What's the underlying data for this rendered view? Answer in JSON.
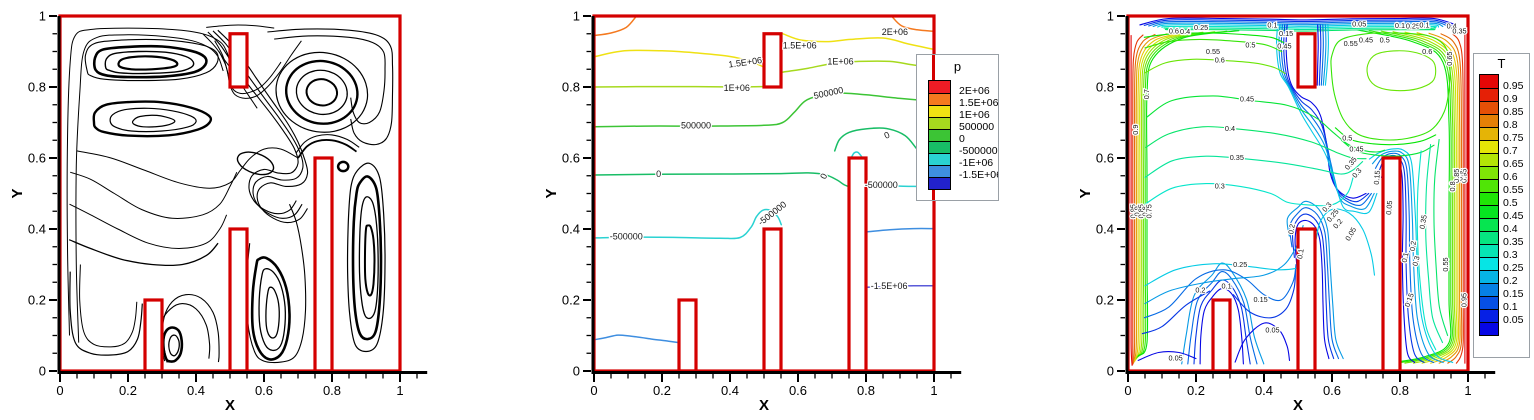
{
  "figure": {
    "background": "#ffffff",
    "boundary_color": "#d40000",
    "domain": {
      "x_range": [
        0,
        1
      ],
      "y_range": [
        0,
        1
      ],
      "obstacles": [
        {
          "x": 0.25,
          "y": 0.0,
          "w": 0.05,
          "h": 0.2
        },
        {
          "x": 0.5,
          "y": 0.0,
          "w": 0.05,
          "h": 0.4
        },
        {
          "x": 0.75,
          "y": 0.0,
          "w": 0.05,
          "h": 0.6
        },
        {
          "x": 0.5,
          "y": 0.8,
          "w": 0.05,
          "h": 0.15
        }
      ]
    },
    "axes": {
      "xlabel": "X",
      "ylabel": "Y",
      "x_ticks": [
        "0",
        "0.2",
        "0.4",
        "0.6",
        "0.8",
        "1"
      ],
      "y_ticks": [
        "0",
        "0.2",
        "0.4",
        "0.6",
        "0.8",
        "1"
      ],
      "tick_values": [
        0,
        0.2,
        0.4,
        0.6,
        0.8,
        1
      ]
    }
  },
  "chart_data": [
    {
      "type": "contour",
      "id": "streamlines",
      "title": "",
      "xlabel": "X",
      "ylabel": "Y",
      "xlim": [
        0,
        1.08
      ],
      "ylim": [
        0,
        1
      ],
      "line_color": "#000000",
      "description": "black streamline (stream-function) contours in a cavity with four red rectangular obstacles",
      "vortex_centers": [
        {
          "x": 0.26,
          "y": 0.87
        },
        {
          "x": 0.28,
          "y": 0.7
        },
        {
          "x": 0.77,
          "y": 0.785
        },
        {
          "x": 0.905,
          "y": 0.33
        },
        {
          "x": 0.62,
          "y": 0.16
        },
        {
          "x": 0.335,
          "y": 0.075
        },
        {
          "x": 0.833,
          "y": 0.576
        },
        {
          "x": 0.575,
          "y": 0.585
        }
      ],
      "contour_labels": []
    },
    {
      "type": "contour",
      "id": "pressure",
      "title": "",
      "xlabel": "X",
      "ylabel": "Y",
      "legend_title": "p",
      "legend_position": "right",
      "levels": [
        {
          "value": 2000000,
          "label": "2E+06",
          "color": "#f4791f"
        },
        {
          "value": 1500000,
          "label": "1.5E+06",
          "color": "#efe113"
        },
        {
          "value": 1000000,
          "label": "1E+06",
          "color": "#a6d91e"
        },
        {
          "value": 500000,
          "label": "500000",
          "color": "#3cc435"
        },
        {
          "value": 0,
          "label": "0",
          "color": "#18bd66"
        },
        {
          "value": -500000,
          "label": "-500000",
          "color": "#2ad2d2"
        },
        {
          "value": -1000000,
          "label": "-1E+06",
          "color": "#3e8ee0"
        },
        {
          "value": -1500000,
          "label": "-1.5E+06",
          "color": "#5a5ad9"
        }
      ],
      "legend_labels": [
        "2E+06",
        "1.5E+06",
        "1E+06",
        "500000",
        "0",
        "-500000",
        "-1E+06",
        "-1.5E+06"
      ],
      "legend_segment_colors": [
        "#ee1c25",
        "#f4791f",
        "#efe113",
        "#a6d91e",
        "#3cc435",
        "#18bd66",
        "#2ad2d2",
        "#3e8ee0",
        "#2222cc"
      ],
      "contour_labels": [
        {
          "text": "2E+06",
          "x": 0.885,
          "y": 0.953,
          "rot": 0
        },
        {
          "text": "1.5E+06",
          "x": 0.445,
          "y": 0.868,
          "rot": -8
        },
        {
          "text": "1.5E+06",
          "x": 0.605,
          "y": 0.916,
          "rot": 0
        },
        {
          "text": "1E+06",
          "x": 0.42,
          "y": 0.796,
          "rot": 0
        },
        {
          "text": "1E+06",
          "x": 0.725,
          "y": 0.871,
          "rot": 0
        },
        {
          "text": "500000",
          "x": 0.3,
          "y": 0.69,
          "rot": 0
        },
        {
          "text": "500000",
          "x": 0.69,
          "y": 0.782,
          "rot": -12
        },
        {
          "text": "0",
          "x": 0.19,
          "y": 0.554,
          "rot": 0
        },
        {
          "text": "0",
          "x": 0.677,
          "y": 0.548,
          "rot": -65
        },
        {
          "text": "0",
          "x": 0.862,
          "y": 0.663,
          "rot": -25
        },
        {
          "text": "-500000",
          "x": 0.095,
          "y": 0.377,
          "rot": 0
        },
        {
          "text": "-500000",
          "x": 0.525,
          "y": 0.443,
          "rot": -38
        },
        {
          "text": "-500000",
          "x": 0.845,
          "y": 0.523,
          "rot": 0
        },
        {
          "text": "-1.5E+06",
          "x": 0.868,
          "y": 0.238,
          "rot": 0
        }
      ]
    },
    {
      "type": "contour",
      "id": "temperature",
      "title": "",
      "xlabel": "X",
      "ylabel": "Y",
      "legend_title": "T",
      "legend_position": "right",
      "levels": [
        0.05,
        0.1,
        0.15,
        0.2,
        0.25,
        0.3,
        0.35,
        0.4,
        0.45,
        0.5,
        0.55,
        0.6,
        0.65,
        0.7,
        0.75,
        0.8,
        0.85,
        0.9,
        0.95
      ],
      "legend_labels": [
        "0.95",
        "0.9",
        "0.85",
        "0.8",
        "0.75",
        "0.7",
        "0.65",
        "0.6",
        "0.55",
        "0.5",
        "0.45",
        "0.4",
        "0.35",
        "0.3",
        "0.25",
        "0.2",
        "0.15",
        "0.1",
        "0.05"
      ],
      "colormap": "rainbow blue(0.05) to red(0.95)",
      "contour_labels": [
        {
          "text": "0.6",
          "x": 0.135,
          "y": 0.958,
          "rot": 0
        },
        {
          "text": "0.4",
          "x": 0.168,
          "y": 0.956,
          "rot": 0
        },
        {
          "text": "0.25",
          "x": 0.215,
          "y": 0.968,
          "rot": 0
        },
        {
          "text": "0.1",
          "x": 0.425,
          "y": 0.974,
          "rot": 0
        },
        {
          "text": "0.15",
          "x": 0.465,
          "y": 0.951,
          "rot": 0
        },
        {
          "text": "0.05",
          "x": 0.68,
          "y": 0.978,
          "rot": 0
        },
        {
          "text": "0.45",
          "x": 0.7,
          "y": 0.932,
          "rot": 0
        },
        {
          "text": "0.5",
          "x": 0.755,
          "y": 0.932,
          "rot": 0
        },
        {
          "text": "0.1",
          "x": 0.8,
          "y": 0.973,
          "rot": 0
        },
        {
          "text": "0.25",
          "x": 0.838,
          "y": 0.972,
          "rot": 0
        },
        {
          "text": "0.1",
          "x": 0.872,
          "y": 0.975,
          "rot": 0
        },
        {
          "text": "0.4",
          "x": 0.952,
          "y": 0.972,
          "rot": 0
        },
        {
          "text": "0.35",
          "x": 0.975,
          "y": 0.958,
          "rot": 0
        },
        {
          "text": "0.55",
          "x": 0.25,
          "y": 0.9,
          "rot": 0
        },
        {
          "text": "0.5",
          "x": 0.36,
          "y": 0.918,
          "rot": 0
        },
        {
          "text": "0.45",
          "x": 0.46,
          "y": 0.915,
          "rot": 0
        },
        {
          "text": "0.6",
          "x": 0.27,
          "y": 0.876,
          "rot": 0
        },
        {
          "text": "0.45",
          "x": 0.35,
          "y": 0.766,
          "rot": 0
        },
        {
          "text": "0.4",
          "x": 0.3,
          "y": 0.683,
          "rot": 0
        },
        {
          "text": "0.35",
          "x": 0.32,
          "y": 0.601,
          "rot": 0
        },
        {
          "text": "0.3",
          "x": 0.27,
          "y": 0.521,
          "rot": 0
        },
        {
          "text": "0.25",
          "x": 0.33,
          "y": 0.3,
          "rot": 0
        },
        {
          "text": "0.2",
          "x": 0.213,
          "y": 0.228,
          "rot": 0
        },
        {
          "text": "0.1",
          "x": 0.29,
          "y": 0.239,
          "rot": 0
        },
        {
          "text": "0.15",
          "x": 0.39,
          "y": 0.201,
          "rot": 0
        },
        {
          "text": "0.05",
          "x": 0.14,
          "y": 0.036,
          "rot": 0
        },
        {
          "text": "0.05",
          "x": 0.425,
          "y": 0.115,
          "rot": 0
        },
        {
          "text": "0.2",
          "x": 0.481,
          "y": 0.4,
          "rot": -80
        },
        {
          "text": "0.1",
          "x": 0.507,
          "y": 0.33,
          "rot": -80
        },
        {
          "text": "0.3",
          "x": 0.585,
          "y": 0.462,
          "rot": -50
        },
        {
          "text": "0.25",
          "x": 0.602,
          "y": 0.438,
          "rot": -50
        },
        {
          "text": "0.2",
          "x": 0.617,
          "y": 0.415,
          "rot": -50
        },
        {
          "text": "0.05",
          "x": 0.655,
          "y": 0.386,
          "rot": -60
        },
        {
          "text": "0.15",
          "x": 0.732,
          "y": 0.545,
          "rot": -85
        },
        {
          "text": "0.05",
          "x": 0.768,
          "y": 0.46,
          "rot": -85
        },
        {
          "text": "0.1",
          "x": 0.815,
          "y": 0.32,
          "rot": -78
        },
        {
          "text": "0.15",
          "x": 0.827,
          "y": 0.2,
          "rot": -70
        },
        {
          "text": "0.2",
          "x": 0.838,
          "y": 0.352,
          "rot": -82
        },
        {
          "text": "0.3",
          "x": 0.847,
          "y": 0.31,
          "rot": -75
        },
        {
          "text": "0.35",
          "x": 0.868,
          "y": 0.42,
          "rot": -80
        },
        {
          "text": "0.55",
          "x": 0.655,
          "y": 0.922,
          "rot": 0
        },
        {
          "text": "0.6",
          "x": 0.88,
          "y": 0.9,
          "rot": 0
        },
        {
          "text": "0.5",
          "x": 0.645,
          "y": 0.656,
          "rot": 0
        },
        {
          "text": "0.45",
          "x": 0.672,
          "y": 0.625,
          "rot": 0
        },
        {
          "text": "0.35",
          "x": 0.655,
          "y": 0.585,
          "rot": -50
        },
        {
          "text": "0.3",
          "x": 0.673,
          "y": 0.558,
          "rot": -50
        },
        {
          "text": "0.95",
          "x": 0.014,
          "y": 0.45,
          "rot": -90
        },
        {
          "text": "0.9",
          "x": 0.026,
          "y": 0.45,
          "rot": -90
        },
        {
          "text": "0.85",
          "x": 0.038,
          "y": 0.45,
          "rot": -90
        },
        {
          "text": "0.8",
          "x": 0.05,
          "y": 0.45,
          "rot": -90
        },
        {
          "text": "0.75",
          "x": 0.062,
          "y": 0.45,
          "rot": -90
        },
        {
          "text": "0.9",
          "x": 0.022,
          "y": 0.68,
          "rot": -90
        },
        {
          "text": "0.7",
          "x": 0.055,
          "y": 0.78,
          "rot": -90
        },
        {
          "text": "0.95",
          "x": 0.988,
          "y": 0.55,
          "rot": -90
        },
        {
          "text": "0.9",
          "x": 0.977,
          "y": 0.55,
          "rot": -90
        },
        {
          "text": "0.85",
          "x": 0.966,
          "y": 0.55,
          "rot": -90
        },
        {
          "text": "0.8",
          "x": 0.955,
          "y": 0.52,
          "rot": -90
        },
        {
          "text": "0.65",
          "x": 0.945,
          "y": 0.88,
          "rot": -90
        },
        {
          "text": "0.95",
          "x": 0.988,
          "y": 0.2,
          "rot": -90
        },
        {
          "text": "0.55",
          "x": 0.934,
          "y": 0.3,
          "rot": -90
        }
      ]
    }
  ]
}
